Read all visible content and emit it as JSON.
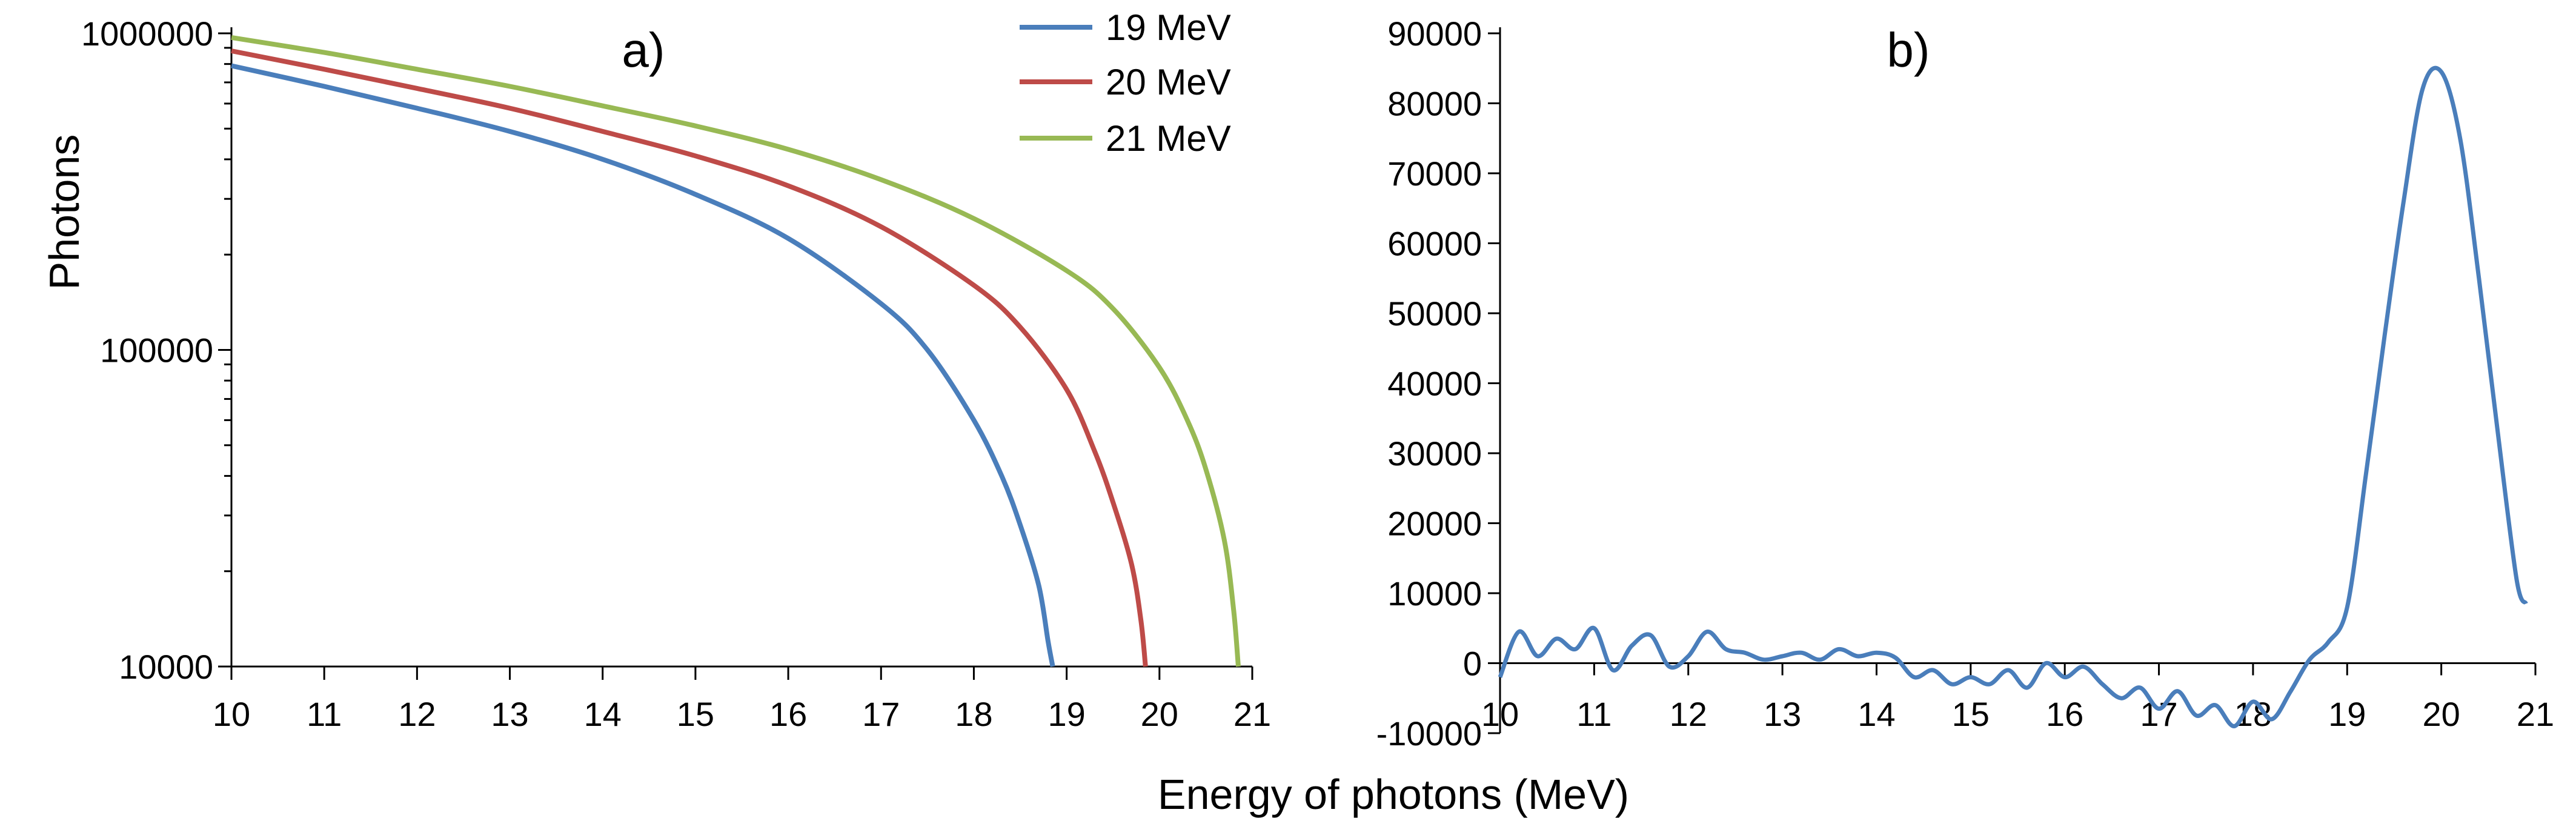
{
  "colors": {
    "axis": "#000000",
    "series_19": "#4a7ebb",
    "series_20": "#be4b48",
    "series_21": "#98b954",
    "panel_b_line": "#4a7ebb"
  },
  "shared": {
    "xlabel": "Energy of photons (MeV)"
  },
  "chart_data": [
    {
      "type": "line",
      "panel_label": "a)",
      "yscale": "log",
      "ylabel": "Photons",
      "xlim": [
        10,
        21
      ],
      "ylim": [
        10000,
        1000000
      ],
      "x_ticks": [
        10,
        11,
        12,
        13,
        14,
        15,
        16,
        17,
        18,
        19,
        20,
        21
      ],
      "x_tick_labels": [
        "10",
        "11",
        "12",
        "13",
        "14",
        "15",
        "16",
        "17",
        "18",
        "19",
        "20",
        "21"
      ],
      "y_ticks": [
        10000,
        100000,
        1000000
      ],
      "y_tick_labels": [
        "10000",
        "100000",
        "1000000"
      ],
      "legend_position": "top-center",
      "series": [
        {
          "name": "19 MeV",
          "x": [
            10,
            11,
            12,
            13,
            14,
            15,
            16,
            17,
            17.5,
            18,
            18.3,
            18.5,
            18.7,
            18.8,
            18.85
          ],
          "y": [
            790000,
            680000,
            580000,
            490000,
            400000,
            310000,
            225000,
            140000,
            100000,
            60000,
            40000,
            28000,
            18000,
            12000,
            10000
          ]
        },
        {
          "name": "20 MeV",
          "x": [
            10,
            11,
            12,
            13,
            14,
            15,
            16,
            17,
            18,
            18.5,
            19,
            19.3,
            19.5,
            19.7,
            19.8,
            19.85
          ],
          "y": [
            880000,
            770000,
            670000,
            580000,
            490000,
            410000,
            330000,
            245000,
            160000,
            118000,
            75000,
            48000,
            33000,
            21000,
            14000,
            10000
          ]
        },
        {
          "name": "21 MeV",
          "x": [
            10,
            11,
            12,
            13,
            14,
            15,
            16,
            17,
            18,
            19,
            19.5,
            20,
            20.3,
            20.5,
            20.7,
            20.8,
            20.85
          ],
          "y": [
            970000,
            870000,
            770000,
            680000,
            590000,
            510000,
            430000,
            345000,
            260000,
            178000,
            135000,
            88000,
            60000,
            42000,
            25000,
            15000,
            10000
          ]
        }
      ]
    },
    {
      "type": "line",
      "panel_label": "b)",
      "ylabel": "",
      "xlim": [
        10,
        21
      ],
      "ylim": [
        -10000,
        90000
      ],
      "x_ticks": [
        10,
        11,
        12,
        13,
        14,
        15,
        16,
        17,
        18,
        19,
        20,
        21
      ],
      "x_tick_labels": [
        "10",
        "11",
        "12",
        "13",
        "14",
        "15",
        "16",
        "17",
        "18",
        "19",
        "20",
        "21"
      ],
      "y_ticks": [
        -10000,
        0,
        10000,
        20000,
        30000,
        40000,
        50000,
        60000,
        70000,
        80000,
        90000
      ],
      "y_tick_labels": [
        "-10000",
        "0",
        "10000",
        "20000",
        "30000",
        "40000",
        "50000",
        "60000",
        "70000",
        "80000",
        "90000"
      ],
      "series": [
        {
          "name": "b",
          "x": [
            10,
            10.2,
            10.4,
            10.6,
            10.8,
            11,
            11.2,
            11.4,
            11.6,
            11.8,
            12,
            12.2,
            12.4,
            12.6,
            12.8,
            13,
            13.2,
            13.4,
            13.6,
            13.8,
            14,
            14.2,
            14.4,
            14.6,
            14.8,
            15,
            15.2,
            15.4,
            15.6,
            15.8,
            16,
            16.2,
            16.4,
            16.6,
            16.8,
            17,
            17.2,
            17.4,
            17.6,
            17.8,
            18,
            18.2,
            18.4,
            18.6,
            18.8,
            19,
            19.2,
            19.4,
            19.6,
            19.8,
            20,
            20.2,
            20.4,
            20.6,
            20.8,
            20.9
          ],
          "y": [
            -2000,
            4500,
            1000,
            3500,
            2000,
            5000,
            -1000,
            2500,
            4000,
            -500,
            1000,
            4500,
            2000,
            1500,
            500,
            1000,
            1500,
            500,
            2000,
            1000,
            1500,
            800,
            -2000,
            -1000,
            -3000,
            -2000,
            -3000,
            -1000,
            -3500,
            0,
            -2000,
            -500,
            -3000,
            -5000,
            -3500,
            -6500,
            -4000,
            -7500,
            -6000,
            -9000,
            -5500,
            -8000,
            -4000,
            500,
            3000,
            8000,
            27000,
            47000,
            66000,
            82000,
            84500,
            75000,
            55000,
            33000,
            12000,
            8500
          ]
        }
      ]
    }
  ]
}
